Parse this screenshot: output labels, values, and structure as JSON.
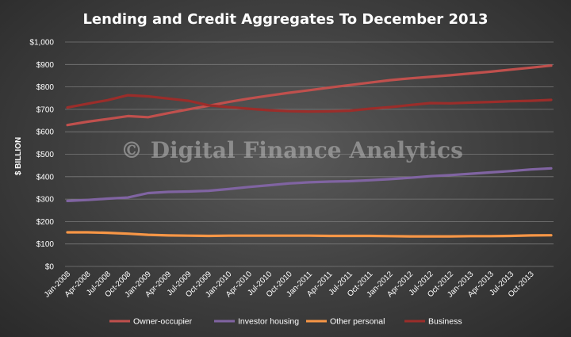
{
  "chart_data": {
    "type": "line",
    "title": "Lending and Credit Aggregates To December 2013",
    "ylabel": "$ BILLION",
    "xlabel": "",
    "ylim": [
      0,
      1000
    ],
    "yticks": [
      0,
      100,
      200,
      300,
      400,
      500,
      600,
      700,
      800,
      900,
      1000
    ],
    "ytick_labels": [
      "$0",
      "$100",
      "$200",
      "$300",
      "$400",
      "$500",
      "$600",
      "$700",
      "$800",
      "$900",
      "$1,000"
    ],
    "x_tick_labels": [
      "Jan-2008",
      "Apr-2008",
      "Jul-2008",
      "Oct-2008",
      "Jan-2009",
      "Apr-2009",
      "Jul-2009",
      "Oct-2009",
      "Jan-2010",
      "Apr-2010",
      "Jul-2010",
      "Oct-2010",
      "Jan-2011",
      "Apr-2011",
      "Jul-2011",
      "Oct-2011",
      "Jan-2012",
      "Apr-2012",
      "Jul-2012",
      "Oct-2012",
      "Jan-2013",
      "Apr-2013",
      "Jul-2013",
      "Oct-2013"
    ],
    "x": [
      "Jan-2008",
      "Apr-2008",
      "Jul-2008",
      "Oct-2008",
      "Jan-2009",
      "Apr-2009",
      "Jul-2009",
      "Oct-2009",
      "Jan-2010",
      "Apr-2010",
      "Jul-2010",
      "Oct-2010",
      "Jan-2011",
      "Apr-2011",
      "Jul-2011",
      "Oct-2011",
      "Jan-2012",
      "Apr-2012",
      "Jul-2012",
      "Oct-2012",
      "Jan-2013",
      "Apr-2013",
      "Jul-2013",
      "Oct-2013",
      "Dec-2013"
    ],
    "grid": true,
    "legend_position": "bottom",
    "series": [
      {
        "name": "Owner-occupier",
        "color": "#c0504d",
        "values": [
          630,
          645,
          657,
          670,
          665,
          683,
          700,
          716,
          733,
          748,
          761,
          774,
          785,
          797,
          808,
          819,
          830,
          838,
          845,
          852,
          860,
          868,
          877,
          886,
          895
        ]
      },
      {
        "name": "Investor housing",
        "color": "#8064a2",
        "values": [
          292,
          296,
          302,
          307,
          327,
          332,
          334,
          337,
          345,
          354,
          362,
          370,
          375,
          378,
          380,
          384,
          389,
          395,
          402,
          407,
          413,
          419,
          425,
          432,
          437
        ]
      },
      {
        "name": "Other personal",
        "color": "#f79646",
        "values": [
          152,
          152,
          150,
          146,
          141,
          138,
          137,
          136,
          137,
          137,
          137,
          137,
          137,
          136,
          136,
          136,
          135,
          134,
          134,
          134,
          135,
          135,
          136,
          138,
          139
        ]
      },
      {
        "name": "Business",
        "color": "#9b2d2a",
        "values": [
          708,
          725,
          741,
          763,
          758,
          748,
          738,
          718,
          710,
          703,
          696,
          692,
          690,
          691,
          694,
          703,
          710,
          719,
          728,
          727,
          730,
          733,
          736,
          738,
          742
        ]
      }
    ]
  },
  "watermark": "© Digital Finance Analytics"
}
